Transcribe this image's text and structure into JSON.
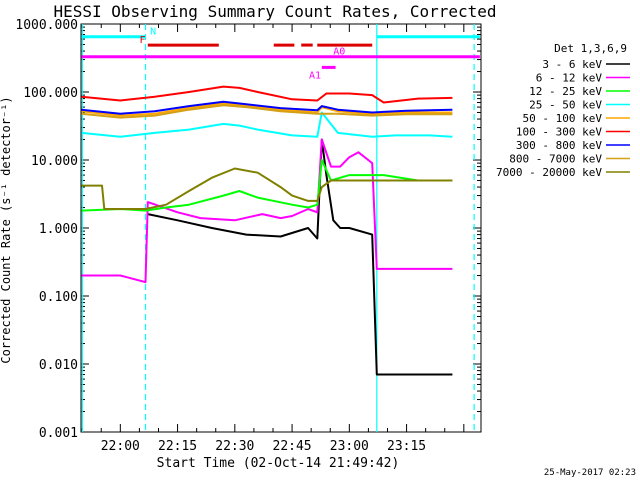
{
  "chart_data": {
    "type": "line",
    "title": "HESSI Observing Summary Count Rates, Corrected",
    "xlabel": "Start Time (02-Oct-14 21:49:42)",
    "ylabel": "Corrected Count Rate (s⁻¹ detector⁻¹)",
    "y_scale": "log",
    "ylim": [
      0.001,
      1000
    ],
    "xlim": [
      21.8283,
      23.575
    ],
    "x_ticks": [
      {
        "label": "22:00",
        "value": 22.0
      },
      {
        "label": "22:15",
        "value": 22.25
      },
      {
        "label": "22:30",
        "value": 22.5
      },
      {
        "label": "22:45",
        "value": 22.75
      },
      {
        "label": "23:00",
        "value": 23.0
      },
      {
        "label": "23:15",
        "value": 23.25
      }
    ],
    "y_ticks": [
      {
        "label": "0.001",
        "value": 0.001
      },
      {
        "label": "0.010",
        "value": 0.01
      },
      {
        "label": "0.100",
        "value": 0.1
      },
      {
        "label": "1.000",
        "value": 1
      },
      {
        "label": "10.000",
        "value": 10
      },
      {
        "label": "100.000",
        "value": 100
      },
      {
        "label": "1000.000",
        "value": 1000
      }
    ],
    "legend_title": "Det 1,3,6,9",
    "legend_position": "right",
    "series": [
      {
        "name": "3 - 6 keV",
        "color": "#000000",
        "x": [
          21.83,
          22.11,
          22.12,
          22.25,
          22.4,
          22.55,
          22.7,
          22.82,
          22.86,
          22.88,
          22.9,
          22.93,
          22.96,
          23.0,
          23.1,
          23.12,
          23.13,
          23.3,
          23.45
        ],
        "y": [
          null,
          null,
          1.6,
          1.3,
          1.0,
          0.8,
          0.75,
          1.0,
          0.7,
          20,
          6,
          1.3,
          1.0,
          1.0,
          0.8,
          0.007,
          0.007,
          0.007,
          0.007
        ]
      },
      {
        "name": "6 - 12 keV",
        "color": "#ff00ff",
        "x": [
          21.83,
          22.0,
          22.11,
          22.12,
          22.25,
          22.35,
          22.5,
          22.62,
          22.7,
          22.75,
          22.82,
          22.86,
          22.88,
          22.92,
          22.96,
          23.0,
          23.04,
          23.1,
          23.12,
          23.2,
          23.3,
          23.45
        ],
        "y": [
          0.2,
          0.2,
          0.16,
          2.4,
          1.7,
          1.4,
          1.3,
          1.6,
          1.4,
          1.5,
          1.9,
          1.7,
          20,
          8,
          8,
          11,
          13,
          9,
          0.25,
          0.25,
          0.25,
          0.25
        ]
      },
      {
        "name": "12 - 25 keV",
        "color": "#00ff00",
        "x": [
          21.83,
          22.0,
          22.11,
          22.2,
          22.3,
          22.45,
          22.52,
          22.6,
          22.75,
          22.82,
          22.86,
          22.88,
          22.92,
          23.0,
          23.1,
          23.15,
          23.3,
          23.45
        ],
        "y": [
          1.8,
          1.9,
          1.8,
          2.0,
          2.2,
          3.0,
          3.5,
          2.8,
          2.2,
          2.0,
          2.2,
          10,
          5,
          6,
          6,
          6,
          5,
          5
        ]
      },
      {
        "name": "25 - 50 keV",
        "color": "#00ffff",
        "x": [
          21.83,
          22.0,
          22.15,
          22.3,
          22.45,
          22.52,
          22.6,
          22.75,
          22.86,
          22.88,
          22.95,
          23.1,
          23.2,
          23.35,
          23.45
        ],
        "y": [
          25,
          22,
          25,
          28,
          34,
          32,
          28,
          23,
          22,
          50,
          25,
          22,
          23,
          23,
          22
        ]
      },
      {
        "name": "50 - 100 keV",
        "color": "#ffa500",
        "x": [
          21.83,
          22.0,
          22.15,
          22.3,
          22.45,
          22.55,
          22.7,
          22.86,
          22.88,
          22.95,
          23.1,
          23.25,
          23.45
        ],
        "y": [
          52,
          45,
          48,
          58,
          68,
          62,
          55,
          50,
          60,
          52,
          47,
          50,
          50
        ]
      },
      {
        "name": "100 - 300 keV",
        "color": "#ff0000",
        "x": [
          21.83,
          22.0,
          22.15,
          22.3,
          22.45,
          22.52,
          22.6,
          22.75,
          22.86,
          22.9,
          23.0,
          23.1,
          23.15,
          23.3,
          23.45
        ],
        "y": [
          85,
          75,
          85,
          100,
          120,
          115,
          100,
          78,
          75,
          95,
          95,
          90,
          70,
          80,
          82
        ]
      },
      {
        "name": "300 - 800 keV",
        "color": "#0000ff",
        "x": [
          21.83,
          22.0,
          22.15,
          22.3,
          22.45,
          22.55,
          22.7,
          22.86,
          22.88,
          22.95,
          23.1,
          23.25,
          23.45
        ],
        "y": [
          55,
          48,
          52,
          62,
          72,
          66,
          58,
          54,
          62,
          55,
          50,
          53,
          55
        ]
      },
      {
        "name": "800 - 7000 keV",
        "color": "#d4a017",
        "x": [
          21.83,
          22.0,
          22.15,
          22.3,
          22.45,
          22.55,
          22.7,
          22.86,
          22.95,
          23.1,
          23.25,
          23.45
        ],
        "y": [
          48,
          42,
          45,
          55,
          64,
          60,
          52,
          48,
          48,
          45,
          47,
          47
        ]
      },
      {
        "name": "7000 - 20000 keV",
        "color": "#808000",
        "x": [
          21.83,
          21.92,
          21.93,
          22.0,
          22.11,
          22.2,
          22.3,
          22.4,
          22.5,
          22.6,
          22.7,
          22.75,
          22.82,
          22.86,
          22.88,
          22.92,
          23.0,
          23.1,
          23.2,
          23.3,
          23.45
        ],
        "y": [
          4.2,
          4.2,
          1.9,
          1.9,
          1.9,
          2.2,
          3.5,
          5.5,
          7.5,
          6.5,
          4.0,
          3.0,
          2.5,
          2.5,
          4,
          5,
          5,
          5,
          5,
          5,
          5
        ]
      }
    ],
    "flags": [
      {
        "label": "N",
        "color": "#00ffff",
        "y": 650,
        "segments": [
          [
            21.83,
            22.11
          ],
          [
            23.12,
            23.57
          ]
        ]
      },
      {
        "label": "F",
        "color": "#dd0000",
        "y": 490,
        "segments": [
          [
            22.12,
            22.43
          ],
          [
            22.67,
            22.76
          ],
          [
            22.79,
            22.84
          ],
          [
            22.86,
            23.1
          ]
        ]
      },
      {
        "label": "A0",
        "color": "#ff00ff",
        "y": 330,
        "segments": [
          [
            21.83,
            23.57
          ]
        ]
      },
      {
        "label": "A1",
        "color": "#ff00ff",
        "y": 230,
        "segments": [
          [
            22.88,
            22.94
          ]
        ]
      }
    ],
    "vlines": [
      {
        "x": 21.834,
        "color": "#00ffff",
        "dashed": false
      },
      {
        "x": 22.11,
        "color": "#00ffff",
        "dashed": true
      },
      {
        "x": 23.12,
        "color": "#00ffff",
        "dashed": false
      },
      {
        "x": 23.545,
        "color": "#00ffff",
        "dashed": true
      }
    ],
    "grid": false,
    "footer_timestamp": "25-May-2017 02:23"
  }
}
